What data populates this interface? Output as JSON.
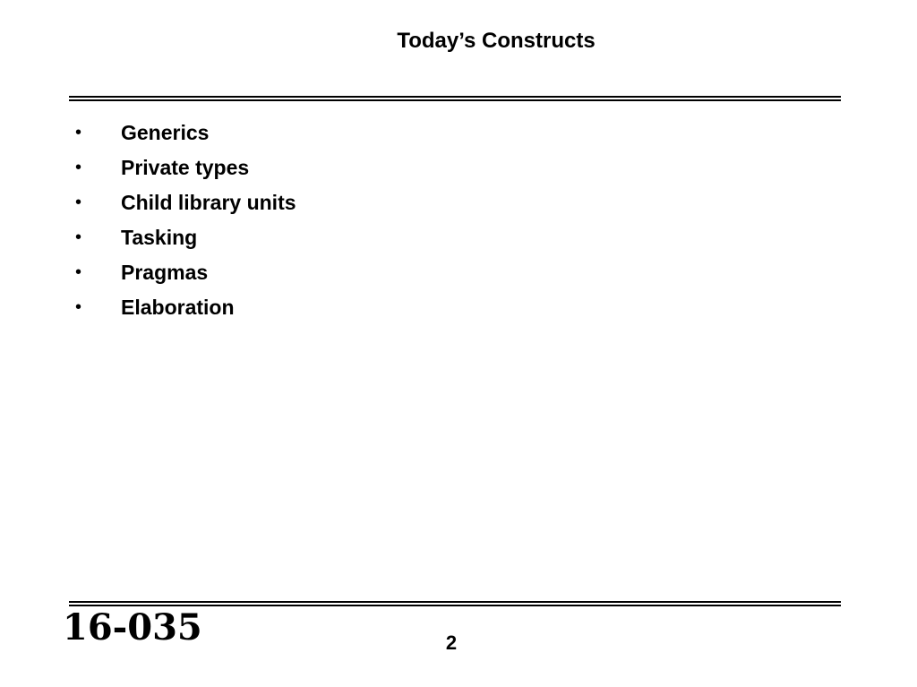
{
  "slide": {
    "title": "Today’s Constructs",
    "bullets": [
      "Generics",
      "Private types",
      "Child library units",
      "Tasking",
      "Pragmas",
      "Elaboration"
    ],
    "bullet_symbol": "•"
  },
  "footer": {
    "course_number": "16-035",
    "page_number": "2"
  }
}
